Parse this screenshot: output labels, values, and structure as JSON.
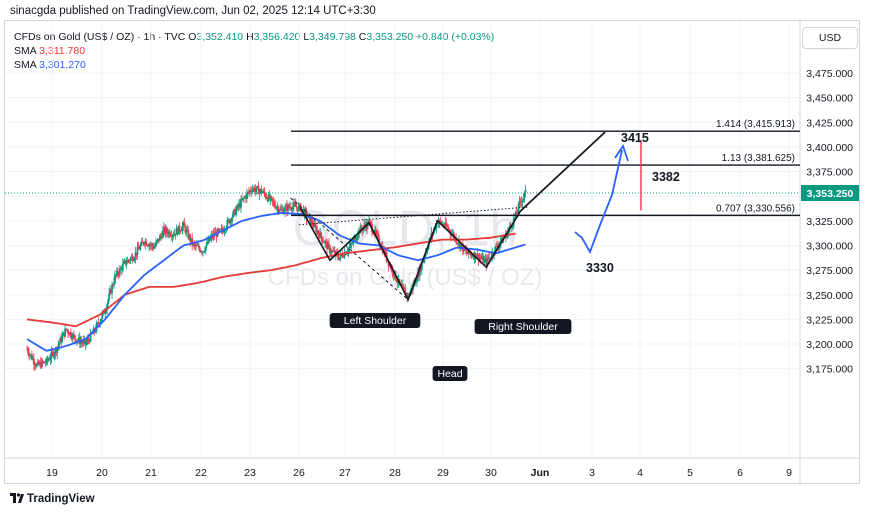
{
  "publisher": "sinacgda published on TradingView.com, Jun 02, 2025 12:14 UTC+3:30",
  "legend": {
    "symbol": "CFDs on Gold (US$ / OZ) · 1h · TVC",
    "open_label": "O",
    "open": "3,352.410",
    "high_label": "H",
    "high": "3,356.420",
    "low_label": "L",
    "low": "3,349.798",
    "close_label": "C",
    "close": "3,353.250",
    "change": "+0.840 (+0.03%)",
    "sma1_label": "SMA",
    "sma1_value": "3,311.780",
    "sma2_label": "SMA",
    "sma2_value": "3,301.270"
  },
  "currency": "USD",
  "watermark": {
    "line1": "GOLD, 1h",
    "line2": "CFDs on Gold (US$ / OZ)"
  },
  "footer": "TradingView",
  "colors": {
    "up": "#089981",
    "down": "#f23645",
    "sma1": "#e53935",
    "sma2": "#2962ff",
    "projection": "#2962ff",
    "target_bar": "#f23645"
  },
  "chart_data": {
    "type": "candlestick",
    "timeframe": "1h",
    "ylim": [
      3150,
      3500
    ],
    "y_ticks": [
      3175,
      3200,
      3225,
      3250,
      3275,
      3300,
      3325,
      3350,
      3375,
      3400,
      3425,
      3450,
      3475
    ],
    "y_tick_labels": [
      "3,175.000",
      "3,200.000",
      "3,225.000",
      "3,250.000",
      "3,275.000",
      "3,300.000",
      "3,325.000",
      "3,350.000",
      "3,375.000",
      "3,400.000",
      "3,425.000",
      "3,450.000",
      "3,475.000"
    ],
    "x_ticks": [
      "19",
      "20",
      "21",
      "22",
      "23",
      "26",
      "27",
      "28",
      "29",
      "30",
      "Jun",
      "3",
      "4",
      "5",
      "6",
      "9"
    ],
    "last_price": 3353.25,
    "last_price_label": "3,353.250",
    "price_path": [
      [
        0,
        3195
      ],
      [
        2,
        3178
      ],
      [
        4,
        3182
      ],
      [
        6,
        3195
      ],
      [
        8,
        3215
      ],
      [
        10,
        3205
      ],
      [
        12,
        3200
      ],
      [
        14,
        3215
      ],
      [
        16,
        3235
      ],
      [
        18,
        3268
      ],
      [
        20,
        3282
      ],
      [
        22,
        3290
      ],
      [
        24,
        3305
      ],
      [
        26,
        3298
      ],
      [
        28,
        3315
      ],
      [
        30,
        3312
      ],
      [
        32,
        3320
      ],
      [
        34,
        3300
      ],
      [
        36,
        3295
      ],
      [
        38,
        3310
      ],
      [
        40,
        3315
      ],
      [
        42,
        3330
      ],
      [
        44,
        3345
      ],
      [
        46,
        3358
      ],
      [
        48,
        3355
      ],
      [
        50,
        3345
      ],
      [
        52,
        3335
      ],
      [
        54,
        3340
      ],
      [
        56,
        3338
      ],
      [
        58,
        3325
      ],
      [
        60,
        3310
      ],
      [
        62,
        3295
      ],
      [
        64,
        3288
      ],
      [
        66,
        3298
      ],
      [
        68,
        3315
      ],
      [
        70,
        3323
      ],
      [
        72,
        3305
      ],
      [
        74,
        3283
      ],
      [
        76,
        3262
      ],
      [
        78,
        3248
      ],
      [
        80,
        3270
      ],
      [
        82,
        3300
      ],
      [
        84,
        3325
      ],
      [
        86,
        3318
      ],
      [
        88,
        3305
      ],
      [
        90,
        3292
      ],
      [
        92,
        3290
      ],
      [
        94,
        3283
      ],
      [
        96,
        3298
      ],
      [
        98,
        3310
      ],
      [
        100,
        3330
      ],
      [
        101,
        3345
      ],
      [
        102,
        3353
      ]
    ],
    "sma_slow_path": [
      [
        0,
        3225
      ],
      [
        5,
        3222
      ],
      [
        10,
        3218
      ],
      [
        15,
        3230
      ],
      [
        20,
        3250
      ],
      [
        25,
        3258
      ],
      [
        30,
        3258
      ],
      [
        35,
        3262
      ],
      [
        40,
        3268
      ],
      [
        45,
        3272
      ],
      [
        50,
        3275
      ],
      [
        55,
        3280
      ],
      [
        60,
        3287
      ],
      [
        65,
        3292
      ],
      [
        70,
        3295
      ],
      [
        75,
        3298
      ],
      [
        80,
        3302
      ],
      [
        85,
        3306
      ],
      [
        90,
        3306
      ],
      [
        95,
        3308
      ],
      [
        100,
        3312
      ]
    ],
    "sma_fast_path": [
      [
        0,
        3205
      ],
      [
        4,
        3193
      ],
      [
        8,
        3198
      ],
      [
        12,
        3205
      ],
      [
        16,
        3225
      ],
      [
        20,
        3250
      ],
      [
        24,
        3270
      ],
      [
        28,
        3285
      ],
      [
        32,
        3300
      ],
      [
        36,
        3305
      ],
      [
        40,
        3315
      ],
      [
        44,
        3325
      ],
      [
        48,
        3330
      ],
      [
        52,
        3333
      ],
      [
        56,
        3332
      ],
      [
        60,
        3325
      ],
      [
        64,
        3310
      ],
      [
        68,
        3302
      ],
      [
        72,
        3300
      ],
      [
        76,
        3290
      ],
      [
        80,
        3285
      ],
      [
        84,
        3290
      ],
      [
        88,
        3298
      ],
      [
        92,
        3296
      ],
      [
        96,
        3292
      ],
      [
        100,
        3298
      ],
      [
        102,
        3301
      ]
    ],
    "fib_levels": [
      {
        "label": "1.414 (3,415.913)",
        "value": 3415.913
      },
      {
        "label": "1.13 (3,381.625)",
        "value": 3381.625
      },
      {
        "label": "0.707 (3,330.556)",
        "value": 3330.556
      }
    ],
    "annotations": {
      "left_shoulder": "Left Shoulder",
      "head": "Head",
      "right_shoulder": "Right Shoulder",
      "target_3415": "3415",
      "target_3382": "3382",
      "level_3330": "3330"
    }
  }
}
